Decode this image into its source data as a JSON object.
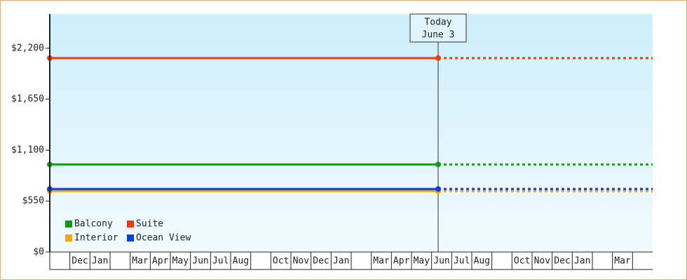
{
  "chart_data": {
    "type": "line",
    "annotation": [
      "Today",
      "June 3"
    ],
    "categories": [
      null,
      "Dec",
      "Jan",
      null,
      "Mar",
      "Apr",
      "May",
      "Jun",
      "Jul",
      "Aug",
      null,
      "Oct",
      "Nov",
      "Dec",
      "Jan",
      null,
      "Mar",
      "Apr",
      "May",
      "Jun",
      "Jul",
      "Aug",
      null,
      "Oct",
      "Nov",
      "Dec",
      "Jan",
      null,
      "Mar",
      null
    ],
    "ylim": [
      0,
      2570
    ],
    "yticks": [
      {
        "value": 0,
        "label": "$0"
      },
      {
        "value": 550,
        "label": "$550"
      },
      {
        "value": 1100,
        "label": "$1,100"
      },
      {
        "value": 1650,
        "label": "$1,650"
      },
      {
        "value": 2200,
        "label": "$2,200"
      }
    ],
    "series": [
      {
        "name": "Balcony",
        "color": "#139a13",
        "value": 945
      },
      {
        "name": "Suite",
        "color": "#f03c0a",
        "value": 2094
      },
      {
        "name": "Interior",
        "color": "#f5a500",
        "value": 658
      },
      {
        "name": "Ocean View",
        "color": "#0a3cf0",
        "value": 680
      }
    ]
  }
}
